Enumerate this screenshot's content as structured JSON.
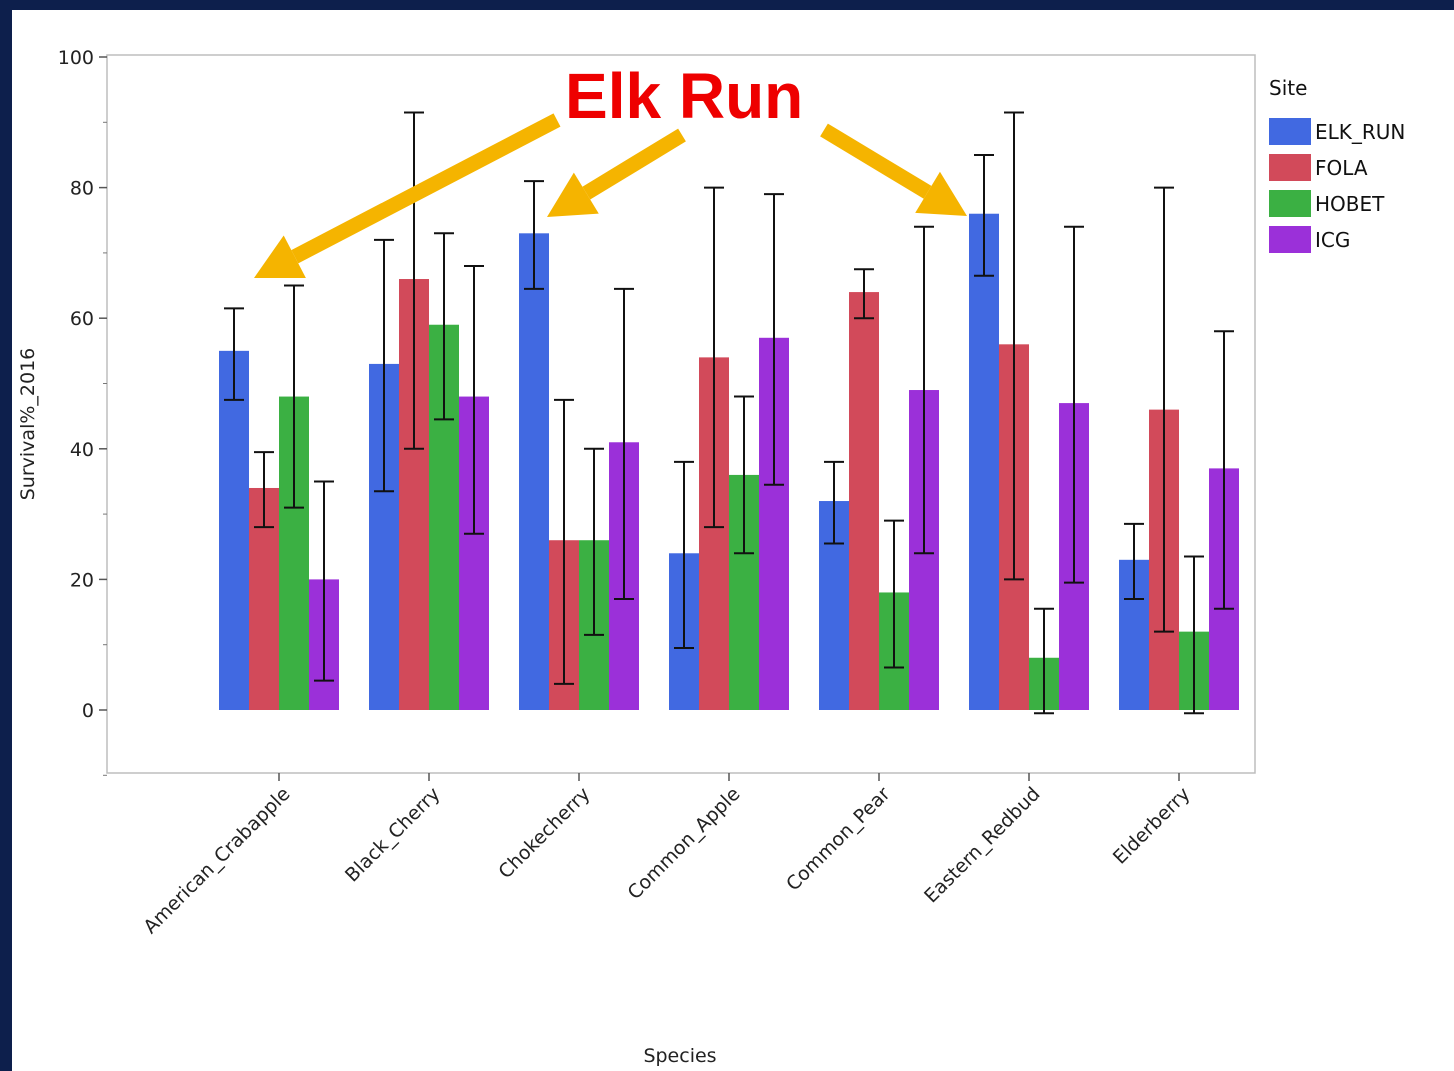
{
  "chart_data": {
    "type": "bar",
    "title": "",
    "xlabel": "Species",
    "ylabel": "Survival%_2016",
    "ylim": [
      -10,
      100
    ],
    "yticks": [
      0,
      20,
      40,
      60,
      80,
      100
    ],
    "categories": [
      "American_Crabapple",
      "Black_Cherry",
      "Chokecherry",
      "Common_Apple",
      "Common_Pear",
      "Eastern_Redbud",
      "Elderberry"
    ],
    "legend": {
      "title": "Site",
      "position": "right"
    },
    "series": [
      {
        "name": "ELK_RUN",
        "color": "#4169e1",
        "values": [
          55,
          53,
          73,
          24,
          32,
          76,
          23
        ],
        "err_low": [
          47.5,
          33.5,
          64.5,
          9.5,
          25.5,
          66.5,
          17
        ],
        "err_high": [
          61.5,
          72,
          81,
          38,
          38,
          85,
          28.5
        ]
      },
      {
        "name": "FOLA",
        "color": "#d24a5a",
        "values": [
          34,
          66,
          26,
          54,
          64,
          56,
          46
        ],
        "err_low": [
          28,
          40,
          4,
          28,
          60,
          20,
          12
        ],
        "err_high": [
          39.5,
          91.5,
          47.5,
          80,
          67.5,
          91.5,
          80
        ]
      },
      {
        "name": "HOBET",
        "color": "#3bb043",
        "values": [
          48,
          59,
          26,
          36,
          18,
          8,
          12
        ],
        "err_low": [
          31,
          44.5,
          11.5,
          24,
          6.5,
          -0.5,
          -0.5
        ],
        "err_high": [
          65,
          73,
          40,
          48,
          29,
          15.5,
          23.5
        ]
      },
      {
        "name": "ICG",
        "color": "#9b30d9",
        "values": [
          20,
          48,
          41,
          57,
          49,
          47,
          37
        ],
        "err_low": [
          4.5,
          27,
          17,
          34.5,
          24,
          19.5,
          15.5
        ],
        "err_high": [
          35,
          68,
          64.5,
          79,
          74,
          74,
          58
        ]
      }
    ],
    "annotation": {
      "text": "Elk Run",
      "color": "#ee0000",
      "arrow_color": "#f5b400"
    }
  }
}
